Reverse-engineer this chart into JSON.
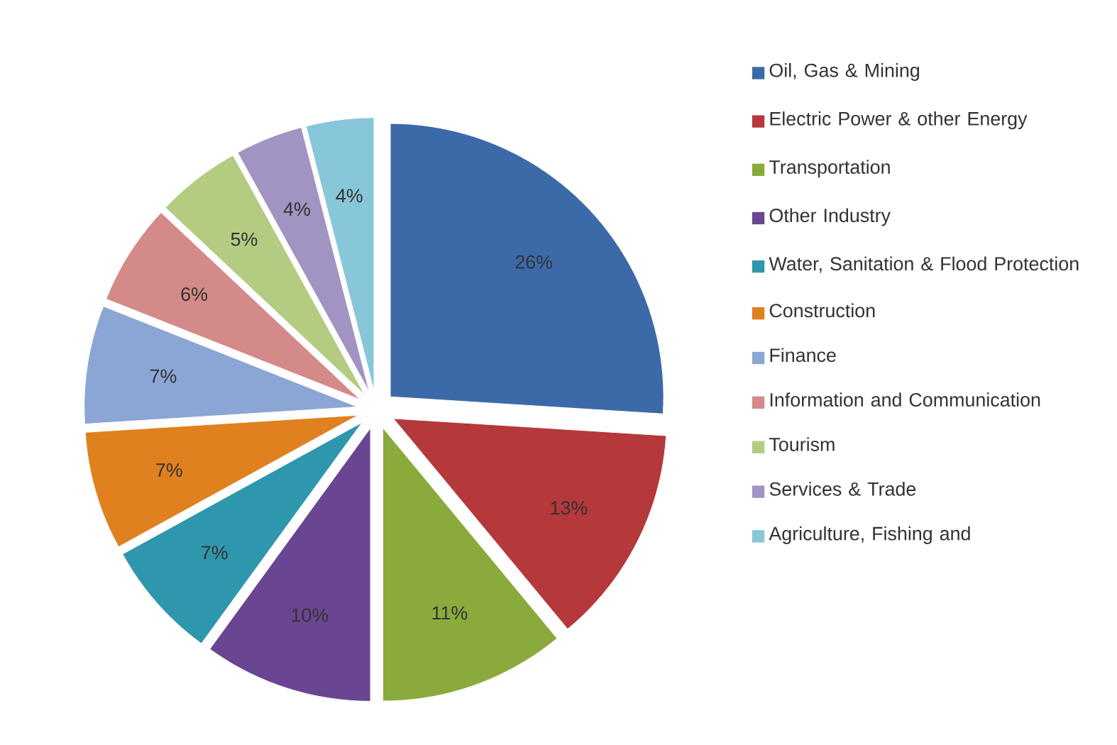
{
  "chart_data": {
    "type": "pie",
    "categories": [
      "Oil, Gas & Mining",
      "Electric Power & other Energy",
      "Transportation",
      "Other Industry",
      "Water, Sanitation & Flood Protection",
      "Construction",
      "Finance",
      "Information and Communication",
      "Tourism",
      "Services & Trade",
      "Agriculture, Fishing and"
    ],
    "values": [
      26,
      13,
      11,
      10,
      7,
      7,
      7,
      6,
      5,
      4,
      4
    ],
    "value_labels": [
      "26%",
      "13%",
      "11%",
      "10%",
      "7%",
      "7%",
      "7%",
      "6%",
      "5%",
      "4%",
      "4%"
    ],
    "colors": [
      "#3c6aa8",
      "#b5383a",
      "#8aaa3c",
      "#6a4592",
      "#2f97ad",
      "#e0801f",
      "#8ba6d4",
      "#d48a88",
      "#b3cc82",
      "#a193c2",
      "#88c6da"
    ],
    "legend": "right"
  }
}
